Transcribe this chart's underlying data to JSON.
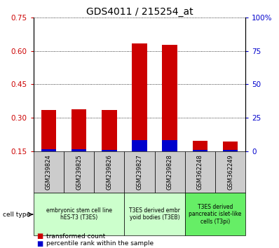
{
  "title": "GDS4011 / 215254_at",
  "samples": [
    "GSM239824",
    "GSM239825",
    "GSM239826",
    "GSM239827",
    "GSM239828",
    "GSM362248",
    "GSM362249"
  ],
  "transformed_count": [
    0.335,
    0.338,
    0.333,
    0.632,
    0.628,
    0.195,
    0.194
  ],
  "percentile_rank": [
    0.157,
    0.157,
    0.156,
    0.198,
    0.198,
    0.156,
    0.156
  ],
  "ylim": [
    0.15,
    0.75
  ],
  "yticks_left": [
    0.15,
    0.3,
    0.45,
    0.6,
    0.75
  ],
  "yticks_left_labels": [
    "0.15",
    "0.30",
    "0.45",
    "0.60",
    "0.75"
  ],
  "yticks_right": [
    0,
    25,
    50,
    75,
    100
  ],
  "yticks_right_labels": [
    "0",
    "25",
    "50",
    "75",
    "100%"
  ],
  "bar_color_red": "#cc0000",
  "bar_color_blue": "#0000cc",
  "bar_width": 0.5,
  "groups": [
    {
      "label": "embryonic stem cell line\nhES-T3 (T3ES)",
      "start": 0,
      "end": 2,
      "color": "#ccffcc"
    },
    {
      "label": "T3ES derived embr\nyoid bodies (T3EB)",
      "start": 3,
      "end": 4,
      "color": "#ccffcc"
    },
    {
      "label": "T3ES derived\npancreatic islet-like\ncells (T3pi)",
      "start": 5,
      "end": 6,
      "color": "#66ee66"
    }
  ],
  "cell_type_label": "cell type",
  "legend_items": [
    {
      "label": "transformed count",
      "color": "#cc0000"
    },
    {
      "label": "percentile rank within the sample",
      "color": "#0000cc"
    }
  ],
  "title_fontsize": 10,
  "tick_fontsize": 7.5,
  "sample_fontsize": 6,
  "group_fontsize": 5.5,
  "legend_fontsize": 6.5
}
